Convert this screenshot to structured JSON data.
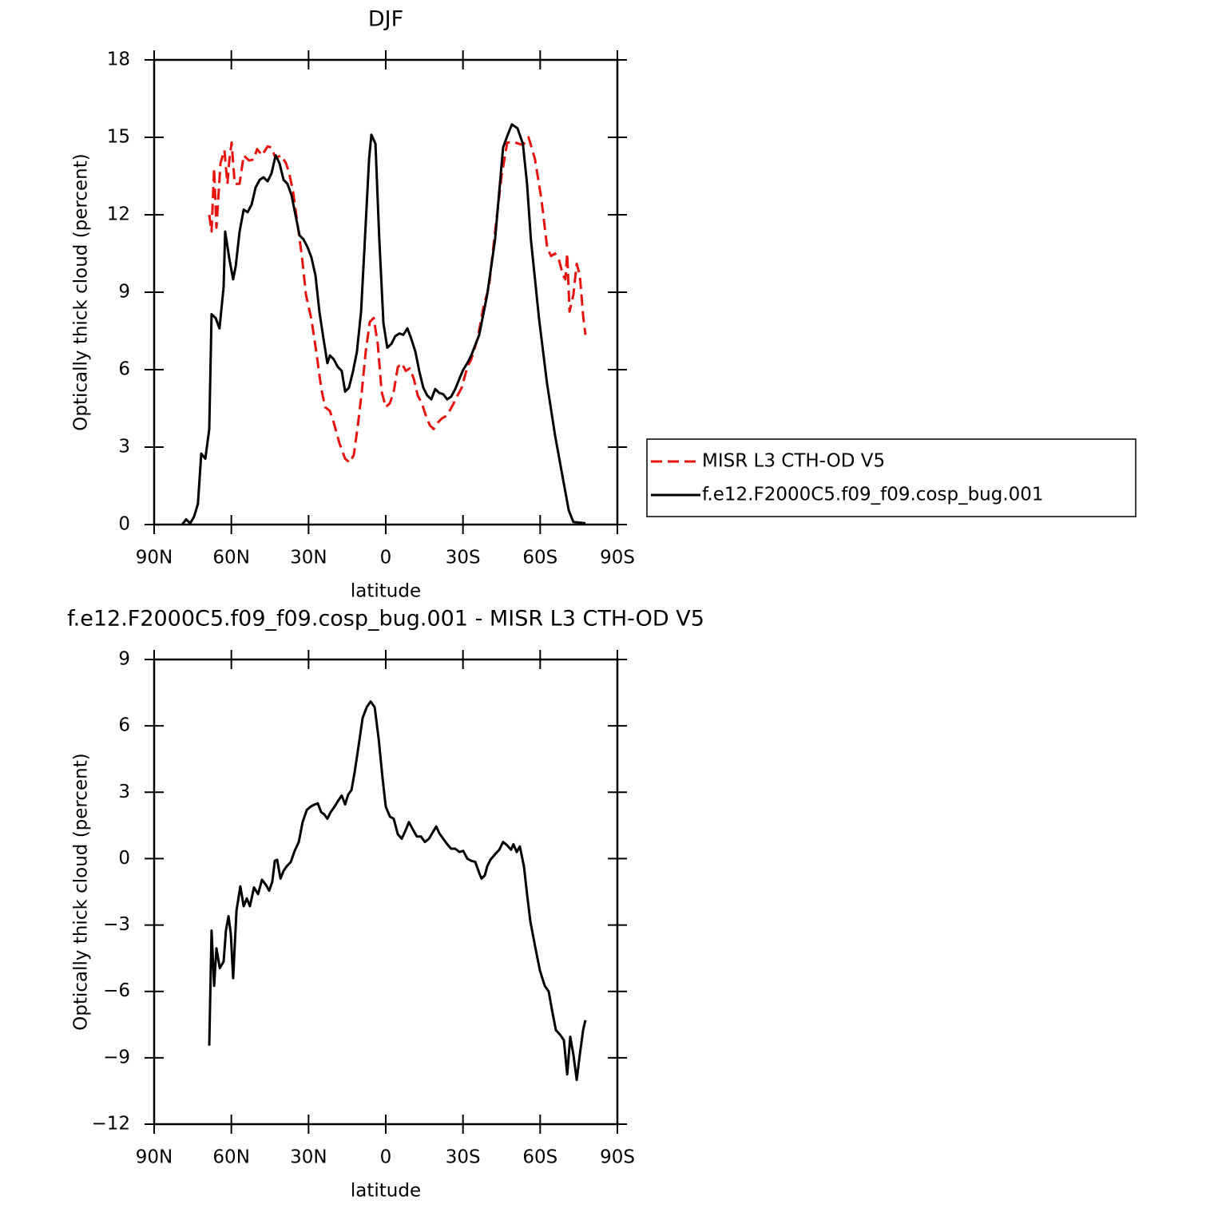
{
  "chart_data": [
    {
      "type": "line",
      "title": "DJF",
      "xlabel": "latitude",
      "ylabel": "Optically thick cloud (percent)",
      "xlim": [
        90,
        -90
      ],
      "xticks": [
        {
          "value": 90,
          "label": "90N"
        },
        {
          "value": 60,
          "label": "60N"
        },
        {
          "value": 30,
          "label": "30N"
        },
        0,
        {
          "value": -30,
          "label": "30S"
        },
        {
          "value": -60,
          "label": "60S"
        },
        {
          "value": -90,
          "label": "90S"
        }
      ],
      "ylim": [
        0,
        18
      ],
      "yticks": [
        0,
        3,
        6,
        9,
        12,
        15,
        18
      ],
      "series": [
        {
          "name": "MISR L3 CTH-OD V5",
          "color": "#e8130f",
          "dash": true,
          "x": [
            68.6,
            67.7,
            66.7,
            65.8,
            64.2,
            62.7,
            61.5,
            60.8,
            59.9,
            58.7,
            56.8,
            55.2,
            53.1,
            51.2,
            50.0,
            48.1,
            45.9,
            44.4,
            42.8,
            40.7,
            38.8,
            37.6,
            36.0,
            34.5,
            32.6,
            31.0,
            28.9,
            27.0,
            25.1,
            23.6,
            21.7,
            20.2,
            18.0,
            15.8,
            14.0,
            12.4,
            10.9,
            9.3,
            7.8,
            6.2,
            4.7,
            3.1,
            1.6,
            0,
            -1.6,
            -3.1,
            -4.7,
            -6.2,
            -7.8,
            -9.3,
            -10.9,
            -12.4,
            -14.0,
            -15.5,
            -17.1,
            -18.6,
            -20.2,
            -21.7,
            -23.3,
            -24.8,
            -26.4,
            -27.9,
            -29.5,
            -31.7,
            -33.2,
            -35.7,
            -37.9,
            -40.1,
            -42.5,
            -45.0,
            -47.2,
            -50.3,
            -53.3,
            -55.5,
            -58.0,
            -60.5,
            -62.7,
            -64.2,
            -65.8,
            -67.3,
            -68.9,
            -69.8,
            -70.5,
            -71.4,
            -72.9,
            -74.2,
            -75.4,
            -76.7,
            -77.6
          ],
          "values": [
            12.0,
            11.35,
            13.8,
            11.5,
            14.0,
            14.5,
            13.2,
            14.1,
            14.8,
            13.2,
            13.2,
            14.3,
            14.1,
            14.15,
            14.55,
            14.3,
            14.65,
            14.6,
            14.2,
            14.3,
            14.0,
            13.65,
            12.9,
            11.8,
            10.4,
            8.9,
            7.95,
            6.7,
            5.3,
            4.55,
            4.4,
            3.95,
            3.15,
            2.55,
            2.4,
            2.7,
            3.8,
            5.15,
            6.7,
            7.85,
            8.0,
            7.0,
            5.15,
            4.55,
            4.7,
            5.15,
            6.1,
            6.25,
            5.95,
            6.05,
            5.65,
            5.0,
            4.7,
            4.25,
            3.85,
            3.7,
            3.95,
            4.1,
            4.2,
            4.4,
            4.7,
            5.0,
            5.3,
            6.1,
            6.4,
            7.2,
            8.4,
            9.2,
            11.35,
            13.5,
            14.8,
            14.8,
            14.7,
            15.0,
            14.15,
            12.6,
            10.75,
            10.4,
            10.5,
            10.25,
            9.65,
            9.5,
            10.5,
            8.25,
            8.9,
            10.1,
            9.65,
            8.1,
            7.35
          ]
        },
        {
          "name": "f.e12.F2000C5.f09_f09.cosp_bug.001",
          "color": "#000000",
          "dash": false,
          "x": [
            79.1,
            77.6,
            76.0,
            74.5,
            73.0,
            71.7,
            70.1,
            68.6,
            67.7,
            66.1,
            64.6,
            63.0,
            62.4,
            60.8,
            59.3,
            58.3,
            56.8,
            55.2,
            53.7,
            52.1,
            50.6,
            49.0,
            47.5,
            45.9,
            44.4,
            42.8,
            41.3,
            39.7,
            38.2,
            36.6,
            35.1,
            33.5,
            32.0,
            30.4,
            28.9,
            27.3,
            25.8,
            24.2,
            22.7,
            21.7,
            20.2,
            18.6,
            17.1,
            15.8,
            14.3,
            12.7,
            11.2,
            9.6,
            8.1,
            6.5,
            5.6,
            4.0,
            2.5,
            0.9,
            -0.6,
            -2.2,
            -3.7,
            -5.3,
            -6.8,
            -8.4,
            -9.9,
            -11.5,
            -13.0,
            -14.6,
            -16.1,
            -17.7,
            -19.2,
            -20.8,
            -22.3,
            -23.9,
            -25.4,
            -27.0,
            -28.6,
            -30.1,
            -31.7,
            -33.2,
            -36.3,
            -39.4,
            -42.5,
            -44.1,
            -45.6,
            -47.2,
            -49.0,
            -51.2,
            -53.3,
            -54.9,
            -56.4,
            -59.6,
            -62.7,
            -65.8,
            -68.9,
            -71.1,
            -72.9,
            -77.6
          ],
          "values": [
            0,
            0.2,
            0.05,
            0.3,
            0.8,
            2.75,
            2.55,
            3.7,
            8.15,
            8.0,
            7.6,
            9.2,
            11.35,
            10.3,
            9.5,
            10,
            11.35,
            12.2,
            12.1,
            12.4,
            13.05,
            13.35,
            13.45,
            13.3,
            13.6,
            14.3,
            14,
            13.35,
            13.2,
            12.75,
            12.0,
            11.2,
            11.05,
            10.75,
            10.35,
            9.65,
            8.25,
            7.2,
            6.25,
            6.55,
            6.4,
            6.1,
            5.95,
            5.15,
            5.3,
            5.95,
            6.7,
            8.25,
            11.05,
            14.15,
            15.1,
            14.75,
            11.05,
            7.8,
            6.85,
            7.0,
            7.3,
            7.4,
            7.35,
            7.6,
            7.2,
            6.7,
            5.95,
            5.3,
            5.0,
            4.85,
            5.25,
            5.1,
            5.05,
            4.85,
            4.95,
            5.25,
            5.65,
            6.0,
            6.25,
            6.55,
            7.35,
            8.9,
            11.05,
            12.9,
            14.6,
            15.05,
            15.5,
            15.35,
            14.75,
            13.2,
            11.05,
            7.95,
            5.45,
            3.45,
            1.75,
            0.55,
            0.1,
            0.05
          ]
        }
      ]
    },
    {
      "type": "line",
      "title": "f.e12.F2000C5.f09_f09.cosp_bug.001 - MISR L3 CTH-OD V5",
      "xlabel": "latitude",
      "ylabel": "Optically thick cloud (percent)",
      "xlim": [
        90,
        -90
      ],
      "xticks": [
        {
          "value": 90,
          "label": "90N"
        },
        {
          "value": 60,
          "label": "60N"
        },
        {
          "value": 30,
          "label": "30N"
        },
        0,
        {
          "value": -30,
          "label": "30S"
        },
        {
          "value": -60,
          "label": "60S"
        },
        {
          "value": -90,
          "label": "90S"
        }
      ],
      "ylim": [
        -12,
        9
      ],
      "yticks": [
        {
          "value": -12,
          "label": "−12"
        },
        {
          "value": -9,
          "label": "−9"
        },
        {
          "value": -6,
          "label": "−6"
        },
        {
          "value": -3,
          "label": "−3"
        },
        0,
        3,
        6,
        9
      ],
      "series": [
        {
          "color": "#000000",
          "dash": false,
          "x": [
            68.6,
            67.7,
            66.7,
            65.8,
            64.5,
            63.0,
            62.1,
            61.1,
            60.2,
            59.3,
            58.0,
            56.5,
            55.2,
            54.0,
            52.8,
            51.2,
            49.6,
            48.1,
            46.5,
            45.3,
            44.1,
            43.1,
            42.2,
            40.9,
            39.7,
            38.5,
            36.9,
            35.4,
            33.8,
            32.3,
            30.7,
            29.2,
            27.6,
            26.4,
            25.1,
            23.9,
            22.7,
            21.4,
            19.9,
            18.6,
            17.1,
            15.8,
            14.6,
            13.3,
            12.1,
            10.6,
            9.0,
            7.4,
            5.9,
            4.3,
            2.8,
            1.2,
            0,
            -1.6,
            -3.1,
            -4.7,
            -6.2,
            -7.8,
            -9.0,
            -10.6,
            -12.1,
            -13.7,
            -15.2,
            -16.8,
            -18.3,
            -19.6,
            -20.8,
            -22.3,
            -23.9,
            -25.4,
            -27.0,
            -28.6,
            -30.1,
            -31.7,
            -33.2,
            -34.8,
            -36.3,
            -37.2,
            -38.5,
            -39.4,
            -40.7,
            -42.5,
            -44.1,
            -45.6,
            -47.2,
            -48.7,
            -49.6,
            -50.9,
            -52.1,
            -53.7,
            -54.9,
            -56.2,
            -58.0,
            -59.9,
            -61.8,
            -63.3,
            -64.6,
            -66.1,
            -67.7,
            -69.2,
            -70.5,
            -71.7,
            -72.9,
            -74.2,
            -75.4,
            -76.7,
            -77.6
          ],
          "values": [
            -8.45,
            -3.25,
            -5.75,
            -4.05,
            -4.95,
            -4.65,
            -3.25,
            -2.6,
            -3.4,
            -5.4,
            -2.35,
            -1.25,
            -2.15,
            -1.8,
            -2.15,
            -1.3,
            -1.6,
            -0.95,
            -1.2,
            -1.45,
            -1.05,
            -0.1,
            -0.05,
            -0.9,
            -0.55,
            -0.35,
            -0.15,
            0.35,
            0.75,
            1.65,
            2.2,
            2.35,
            2.45,
            2.5,
            2.1,
            2.0,
            1.8,
            2.1,
            2.35,
            2.6,
            2.85,
            2.45,
            2.9,
            3.1,
            3.9,
            5.05,
            6.35,
            6.85,
            7.1,
            6.85,
            5.45,
            3.6,
            2.35,
            1.9,
            1.8,
            1.1,
            0.9,
            1.3,
            1.65,
            1.3,
            1.0,
            1.0,
            0.75,
            0.9,
            1.2,
            1.45,
            1.15,
            0.9,
            0.65,
            0.45,
            0.45,
            0.3,
            0.35,
            0.0,
            -0.1,
            -0.15,
            -0.65,
            -0.9,
            -0.75,
            -0.35,
            -0.05,
            0.2,
            0.4,
            0.75,
            0.6,
            0.4,
            0.65,
            0.3,
            0.55,
            -0.35,
            -1.6,
            -2.85,
            -3.95,
            -5.05,
            -5.75,
            -6.0,
            -6.85,
            -7.75,
            -7.95,
            -8.2,
            -9.75,
            -8.05,
            -8.85,
            -10.0,
            -8.85,
            -7.75,
            -7.3
          ]
        }
      ]
    }
  ]
}
